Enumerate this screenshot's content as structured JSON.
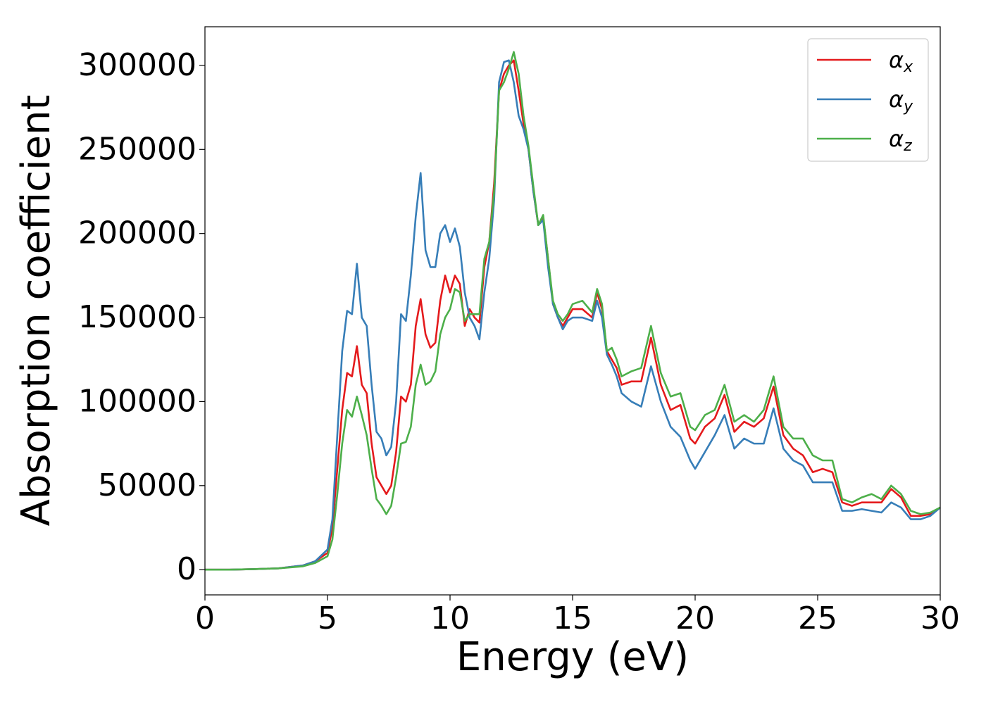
{
  "chart_data": {
    "type": "line",
    "x_label": "Energy (eV)",
    "y_label": "Absorption coefficient",
    "x": [
      0,
      1,
      2,
      3,
      4,
      4.5,
      5,
      5.2,
      5.4,
      5.6,
      5.8,
      6.0,
      6.2,
      6.4,
      6.6,
      6.8,
      7.0,
      7.2,
      7.4,
      7.6,
      7.8,
      8.0,
      8.2,
      8.4,
      8.6,
      8.8,
      9.0,
      9.2,
      9.4,
      9.6,
      9.8,
      10.0,
      10.2,
      10.4,
      10.6,
      10.8,
      11.0,
      11.2,
      11.4,
      11.6,
      11.8,
      12.0,
      12.2,
      12.4,
      12.6,
      12.8,
      13.0,
      13.2,
      13.4,
      13.6,
      13.8,
      14.0,
      14.2,
      14.4,
      14.6,
      14.8,
      15.0,
      15.4,
      15.8,
      16.0,
      16.2,
      16.4,
      16.6,
      16.8,
      17.0,
      17.4,
      17.8,
      18.2,
      18.6,
      19.0,
      19.4,
      19.8,
      20.0,
      20.4,
      20.8,
      21.2,
      21.6,
      22.0,
      22.4,
      22.8,
      23.2,
      23.6,
      24.0,
      24.4,
      24.8,
      25.2,
      25.6,
      26.0,
      26.4,
      26.8,
      27.2,
      27.6,
      28.0,
      28.4,
      28.8,
      29.2,
      29.6,
      30.0
    ],
    "series": [
      {
        "name": "αx",
        "color": "#e41a1c",
        "values": [
          0,
          0,
          300,
          800,
          2500,
          5000,
          10000,
          25000,
          60000,
          95000,
          117000,
          115000,
          133000,
          110000,
          105000,
          75000,
          55000,
          50000,
          45000,
          50000,
          70000,
          103000,
          100000,
          110000,
          145000,
          161000,
          140000,
          132000,
          135000,
          160000,
          175000,
          165000,
          175000,
          170000,
          145000,
          155000,
          150000,
          147000,
          180000,
          195000,
          230000,
          285000,
          295000,
          300000,
          303000,
          285000,
          265000,
          250000,
          225000,
          205000,
          210000,
          185000,
          158000,
          150000,
          145000,
          150000,
          155000,
          155000,
          150000,
          165000,
          155000,
          130000,
          125000,
          120000,
          110000,
          112000,
          112000,
          138000,
          110000,
          95000,
          98000,
          78000,
          75000,
          85000,
          90000,
          104000,
          82000,
          88000,
          85000,
          90000,
          109000,
          80000,
          72000,
          68000,
          58000,
          60000,
          58000,
          40000,
          38000,
          40000,
          40000,
          40000,
          48000,
          43000,
          32000,
          32000,
          33000,
          37000
        ]
      },
      {
        "name": "αy",
        "color": "#377eb8",
        "values": [
          0,
          0,
          300,
          800,
          2500,
          5000,
          12000,
          30000,
          80000,
          130000,
          154000,
          152000,
          182000,
          150000,
          145000,
          110000,
          82000,
          78000,
          68000,
          73000,
          100000,
          152000,
          148000,
          175000,
          210000,
          236000,
          190000,
          180000,
          180000,
          200000,
          205000,
          195000,
          203000,
          192000,
          165000,
          150000,
          145000,
          137000,
          165000,
          185000,
          220000,
          290000,
          302000,
          303000,
          290000,
          270000,
          262000,
          250000,
          225000,
          205000,
          208000,
          180000,
          158000,
          150000,
          143000,
          148000,
          150000,
          150000,
          148000,
          160000,
          150000,
          128000,
          122000,
          115000,
          105000,
          100000,
          97000,
          121000,
          100000,
          85000,
          79000,
          65000,
          60000,
          70000,
          80000,
          92000,
          72000,
          78000,
          75000,
          75000,
          96000,
          72000,
          65000,
          62000,
          52000,
          52000,
          52000,
          35000,
          35000,
          36000,
          35000,
          34000,
          40000,
          37000,
          30000,
          30000,
          32000,
          37000
        ]
      },
      {
        "name": "αz",
        "color": "#4daf4a",
        "values": [
          0,
          0,
          300,
          800,
          2000,
          4000,
          8000,
          18000,
          45000,
          75000,
          95000,
          91000,
          103000,
          92000,
          80000,
          60000,
          42000,
          38000,
          33000,
          38000,
          55000,
          75000,
          76000,
          85000,
          110000,
          122000,
          110000,
          112000,
          118000,
          140000,
          150000,
          155000,
          167000,
          165000,
          148000,
          152000,
          152000,
          152000,
          185000,
          195000,
          225000,
          285000,
          290000,
          298000,
          308000,
          295000,
          270000,
          252000,
          228000,
          205000,
          211000,
          185000,
          160000,
          152000,
          148000,
          152000,
          158000,
          160000,
          153000,
          167000,
          158000,
          130000,
          132000,
          125000,
          115000,
          118000,
          120000,
          145000,
          117000,
          103000,
          105000,
          85000,
          83000,
          92000,
          95000,
          110000,
          88000,
          92000,
          88000,
          95000,
          115000,
          85000,
          78000,
          78000,
          68000,
          65000,
          65000,
          42000,
          40000,
          43000,
          45000,
          42000,
          50000,
          45000,
          35000,
          33000,
          34000,
          37000
        ]
      }
    ],
    "xlim": [
      0,
      30
    ],
    "xticks": [
      0,
      5,
      10,
      15,
      20,
      25,
      30
    ],
    "ylim": [
      -15000,
      323000
    ],
    "yticks": [
      0,
      50000,
      100000,
      150000,
      200000,
      250000,
      300000
    ],
    "grid": false,
    "legend": "upper right"
  }
}
